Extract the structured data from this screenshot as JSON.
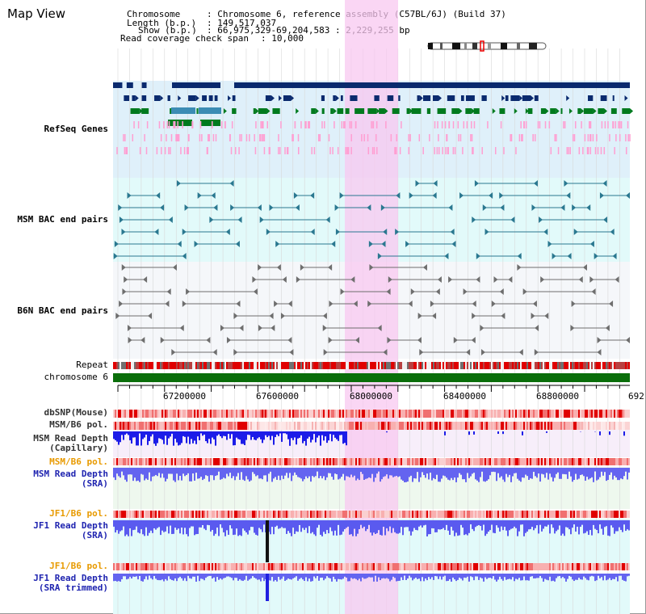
{
  "header": {
    "title": "Map View",
    "chromosome_label": "Chromosome",
    "chromosome_value": ": Chromosome 6, reference assembly (C57BL/6J) (Build 37)",
    "length_label": "Length (b.p.)",
    "length_value": ": 149,517,037",
    "show_label": "Show (b.p.)",
    "show_value": ": 66,975,329-69,204,583 : 2,229,255 bp",
    "coverage_label": "Read coverage check span",
    "coverage_value": ": 10,000"
  },
  "tracks": {
    "refseq": "RefSeq Genes",
    "msm_bac": "MSM BAC end pairs",
    "b6n_bac": "B6N BAC end pairs",
    "repeat": "Repeat",
    "chromosome": "chromosome 6",
    "dbsnp": "dbSNP(Mouse)",
    "msm_b6_pol": "MSM/B6 pol.",
    "msm_depth_cap": "MSM Read Depth\n(Capillary)",
    "msm_b6_pol_2": "MSM/B6 pol.",
    "msm_depth_sra": "MSM Read Depth\n(SRA)",
    "jf1_b6_pol": "JF1/B6 pol.",
    "jf1_depth_sra": "JF1 Read Depth\n(SRA)",
    "jf1_b6_pol_2": "JF1/B6 pol.",
    "jf1_depth_trim": "JF1 Read Depth\n(SRA trimmed)"
  },
  "axis_ticks": [
    "67200000",
    "67600000",
    "68000000",
    "68400000",
    "68800000",
    "692"
  ],
  "colors": {
    "gene_navy": "#0a2a6e",
    "gene_green": "#007a1e",
    "gene_teal": "#3c8cb4",
    "refseq_pink": "#ff9fd2",
    "msm_teal": "#2a7890",
    "b6n_gray": "#6e6e6e",
    "highlight": "#f8c8f0",
    "label_blue": "#1f24b0",
    "label_orange": "#e89a00",
    "label_teal": "#2a6c8a",
    "chrom_green": "#0a6e0a",
    "depth_blue": "#5a5aef"
  }
}
